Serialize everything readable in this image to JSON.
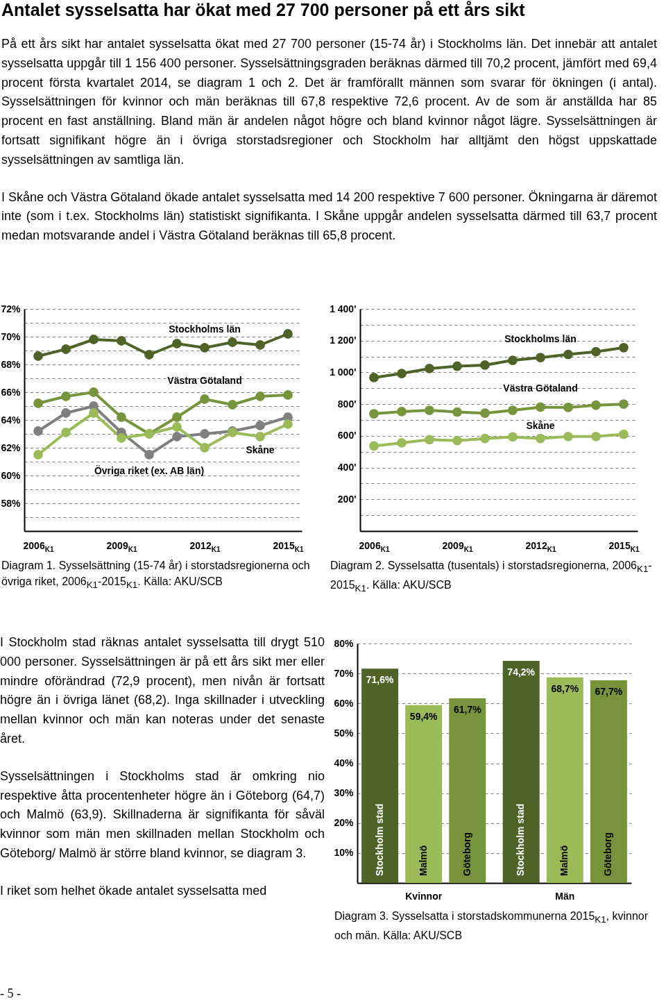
{
  "chart_data": [
    {
      "type": "other",
      "title": "Antalet sysselsatta har ökat med 27 700 personer på ett års sikt",
      "annotations": [
        "På ett års sikt har antalet sysselsatta ökat med 27 700 personer (15-74 år) i Stockholms län. Det innebär att antalet sysselsatta uppgår till 1 156 400 personer. Sysselsättningsgraden beräknas därmed till 70,2 procent, jämfört med 69,4 procent första kvartalet 2014, se diagram 1 och 2. Det är framförallt männen som svarar för ökningen (i antal). Sysselsättningen för kvinnor och män beräknas till 67,8 respektive 72,6 procent. Av de som är anställda har 85 procent en fast anställning. Bland män är andelen något högre och bland kvinnor något lägre. Sysselsättningen är fortsatt signifikant högre än i övriga storstadsregioner och Stockholm har alltjämt den högst uppskattade sysselsättningen av samtliga län.",
        "I Skåne och Västra Götaland ökade antalet sysselsatta med 14 200 respektive 7 600 personer. Ökningarna är däremot inte (som i t.ex. Stockholms län) statistiskt signifikanta. I Skåne uppgår andelen sysselsatta därmed till 63,7 procent medan motsvarande andel i Västra Götaland beräknas till 65,8 procent."
      ]
    },
    {
      "type": "line",
      "annotations": [
        "Diagram 1. Sysselsättning (15-74 år) i storstadsregionerna och övriga riket, 2006$_{K1}$-2015$_{K1}$. Källa: AKU/SCB"
      ],
      "categories": [
        "2006$_{K1}$",
        null,
        null,
        "2009$_{K1}$",
        null,
        null,
        "2012$_{K1}$",
        null,
        null,
        "2015$_{K1}$"
      ],
      "marker": "circle",
      "line_style": "solid",
      "grid": "y",
      "ylim": [
        56,
        72
      ],
      "yticks": [
        {
          "value": 57,
          "label": null
        },
        {
          "value": 58,
          "label": "58%"
        },
        {
          "value": 59,
          "label": null
        },
        {
          "value": 60,
          "label": "60%"
        },
        {
          "value": 61,
          "label": null
        },
        {
          "value": 62,
          "label": "62%"
        },
        {
          "value": 63,
          "label": null
        },
        {
          "value": 64,
          "label": "64%"
        },
        {
          "value": 65,
          "label": null
        },
        {
          "value": 66,
          "label": "66%"
        },
        {
          "value": 67,
          "label": null
        },
        {
          "value": 68,
          "label": "68%"
        },
        {
          "value": 69,
          "label": null
        },
        {
          "value": 70,
          "label": "70%"
        },
        {
          "value": 71,
          "label": null
        },
        {
          "value": 72,
          "label": "72%"
        }
      ],
      "series": [
        {
          "name": "Stockholms län",
          "color": "#4f6228",
          "values": [
            68.6,
            69.1,
            69.8,
            69.7,
            68.7,
            69.5,
            69.2,
            69.6,
            69.4,
            70.2
          ]
        },
        {
          "name": "Västra Götaland",
          "color": "#77933c",
          "values": [
            65.2,
            65.7,
            66.0,
            64.2,
            63.0,
            64.2,
            65.5,
            65.1,
            65.7,
            65.8
          ]
        },
        {
          "name": "Övriga riket (ex. AB län)",
          "color": "#7f7f7f",
          "values": [
            63.2,
            64.5,
            65.0,
            63.1,
            61.5,
            62.8,
            63.0,
            63.2,
            63.6,
            64.2
          ]
        },
        {
          "name": "Skåne",
          "color": "#9bbb59",
          "values": [
            61.5,
            63.1,
            64.5,
            62.7,
            63.0,
            63.5,
            62.0,
            63.1,
            62.8,
            63.7
          ]
        }
      ]
    },
    {
      "type": "line",
      "annotations": [
        "Diagram 2. Sysselsatta (tusentals) i storstadsregionerna, 2006$_{K1}$-2015$_{K1}$. Källa: AKU/SCB"
      ],
      "categories": [
        "2006$_{K1}$",
        null,
        null,
        "2009$_{K1}$",
        null,
        null,
        "2012$_{K1}$",
        null,
        null,
        "2015$_{K1}$"
      ],
      "marker": "circle",
      "line_style": "solid",
      "grid": "y",
      "ylim": [
        0,
        1400
      ],
      "yticks": [
        {
          "value": 100,
          "label": null
        },
        {
          "value": 200,
          "label": "200'"
        },
        {
          "value": 300,
          "label": null
        },
        {
          "value": 400,
          "label": "400'"
        },
        {
          "value": 500,
          "label": null
        },
        {
          "value": 600,
          "label": "600'"
        },
        {
          "value": 700,
          "label": null
        },
        {
          "value": 800,
          "label": "800'"
        },
        {
          "value": 900,
          "label": null
        },
        {
          "value": 1000,
          "label": "1 000'"
        },
        {
          "value": 1100,
          "label": null
        },
        {
          "value": 1200,
          "label": "1 200'"
        },
        {
          "value": 1300,
          "label": null
        },
        {
          "value": 1400,
          "label": "1 400'"
        }
      ],
      "series": [
        {
          "name": "Stockholms län",
          "color": "#4f6228",
          "values": [
            967,
            993,
            1024,
            1039,
            1046,
            1076,
            1093,
            1113,
            1130,
            1156
          ]
        },
        {
          "name": "Västra Götaland",
          "color": "#77933c",
          "values": [
            739,
            753,
            761,
            750,
            743,
            761,
            781,
            779,
            793,
            800
          ]
        },
        {
          "name": "Skåne",
          "color": "#9bbb59",
          "values": [
            536,
            556,
            576,
            570,
            583,
            593,
            583,
            596,
            596,
            610
          ]
        }
      ]
    },
    {
      "type": "other",
      "annotations": [
        "I Stockholm stad räknas antalet sysselsatta till drygt 510 000 personer. Sysselsättningen är på ett års sikt mer eller mindre oförändrad (72,9 procent), men nivån är fortsatt högre än i övriga länet (68,2). Inga skillnader i utveckling mellan kvinnor och män kan noteras under det senaste året.",
        "Sysselsättningen i Stockholms stad är omkring nio respektive åtta procentenheter högre än i Göteborg (64,7) och Malmö (63,9). Skillnaderna är signifikanta för såväl kvinnor som män men skillnaden mellan Stockholm och Göteborg/ Malmö är större bland kvinnor, se diagram 3.",
        "I riket som helhet ökade antalet sysselsatta med"
      ]
    },
    {
      "type": "bar",
      "annotations": [
        "Diagram 3. Sysselsatta i storstadskommunerna 2015$_{K1}$, kvinnor och män. Källa: AKU/SCB"
      ],
      "categories": [
        "Kvinnor",
        "Män"
      ],
      "grid": "y",
      "ylim": [
        0,
        80
      ],
      "yticks": [
        {
          "value": 10,
          "label": "10%"
        },
        {
          "value": 20,
          "label": "20%"
        },
        {
          "value": 30,
          "label": "30%"
        },
        {
          "value": 40,
          "label": "40%"
        },
        {
          "value": 50,
          "label": "50%"
        },
        {
          "value": 60,
          "label": "60%"
        },
        {
          "value": 70,
          "label": "70%"
        },
        {
          "value": 80,
          "label": "80%"
        }
      ],
      "series": [
        {
          "name": "Stockholm stad",
          "color": "#4f6228",
          "values": [
            71.6,
            74.2
          ],
          "value_labels": [
            "71,6%",
            "74,2%"
          ]
        },
        {
          "name": "Malmö",
          "color": "#9bbb59",
          "values": [
            59.4,
            68.7
          ],
          "value_labels": [
            "59,4%",
            "68,7%"
          ]
        },
        {
          "name": "Göteborg",
          "color": "#77933c",
          "values": [
            61.7,
            67.7
          ],
          "value_labels": [
            "61,7%",
            "67,7%"
          ]
        }
      ]
    },
    {
      "type": "other",
      "annotations": [
        "- 5 -"
      ]
    }
  ]
}
